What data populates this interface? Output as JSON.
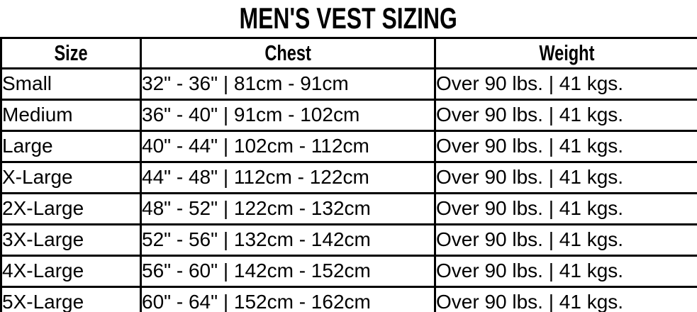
{
  "title": "MEN'S VEST SIZING",
  "colors": {
    "border": "#000000",
    "text": "#000000",
    "background": "#ffffff"
  },
  "table": {
    "headers": [
      "Size",
      "Chest",
      "Weight"
    ],
    "rows": [
      [
        "Small",
        "32\" - 36\" | 81cm - 91cm",
        "Over 90 lbs. | 41 kgs."
      ],
      [
        "Medium",
        "36\" - 40\" | 91cm - 102cm",
        "Over 90 lbs. | 41 kgs."
      ],
      [
        "Large",
        "40\" - 44\" | 102cm - 112cm",
        "Over 90 lbs. | 41 kgs."
      ],
      [
        "X-Large",
        "44\" - 48\" | 112cm - 122cm",
        "Over 90 lbs. | 41 kgs."
      ],
      [
        "2X-Large",
        "48\" - 52\" | 122cm - 132cm",
        "Over 90 lbs. | 41 kgs."
      ],
      [
        "3X-Large",
        "52\" - 56\" | 132cm - 142cm",
        "Over 90 lbs. | 41 kgs."
      ],
      [
        "4X-Large",
        "56\" - 60\" | 142cm - 152cm",
        "Over 90 lbs. | 41 kgs."
      ],
      [
        "5X-Large",
        "60\" - 64\" | 152cm - 162cm",
        "Over 90 lbs. | 41 kgs."
      ]
    ]
  }
}
